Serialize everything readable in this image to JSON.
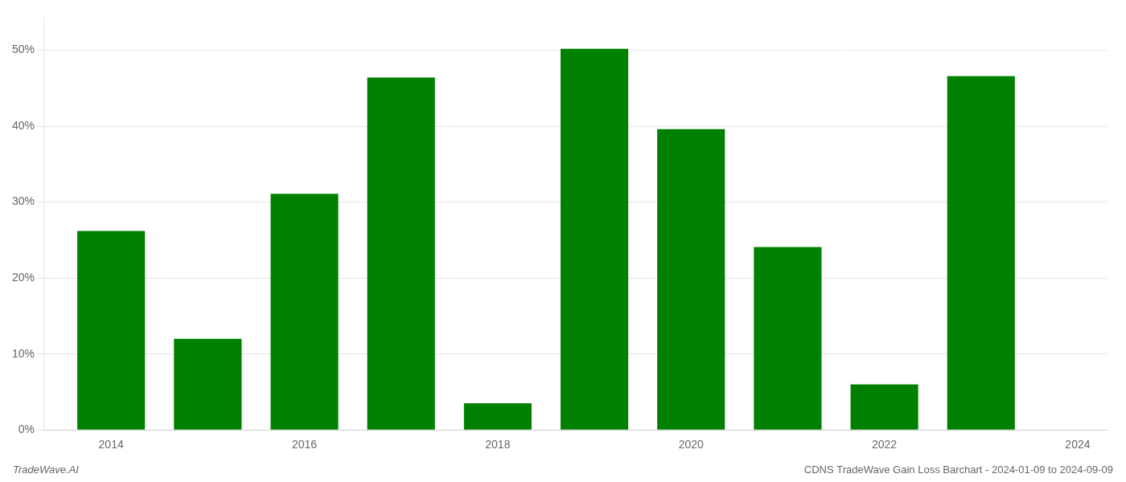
{
  "chart_data": {
    "type": "bar",
    "x": [
      2014,
      2015,
      2016,
      2017,
      2018,
      2019,
      2020,
      2021,
      2022,
      2023
    ],
    "values": [
      0.262,
      0.12,
      0.311,
      0.464,
      0.035,
      0.502,
      0.396,
      0.241,
      0.06,
      0.466
    ],
    "color": "#008000",
    "xlim": [
      2013.3,
      2024.3
    ],
    "xticks": [
      2014,
      2016,
      2018,
      2020,
      2022,
      2024
    ],
    "ylim": [
      0,
      0.545
    ],
    "yticks": [
      {
        "value": 0.0,
        "label": "0%"
      },
      {
        "value": 0.1,
        "label": "10%"
      },
      {
        "value": 0.2,
        "label": "20%"
      },
      {
        "value": 0.3,
        "label": "30%"
      },
      {
        "value": 0.4,
        "label": "40%"
      },
      {
        "value": 0.5,
        "label": "50%"
      }
    ],
    "grid": "y",
    "annotations": [
      "TradeWave.AI",
      "CDNS TradeWave Gain Loss Barchart - 2024-01-09 to 2024-09-09"
    ]
  }
}
